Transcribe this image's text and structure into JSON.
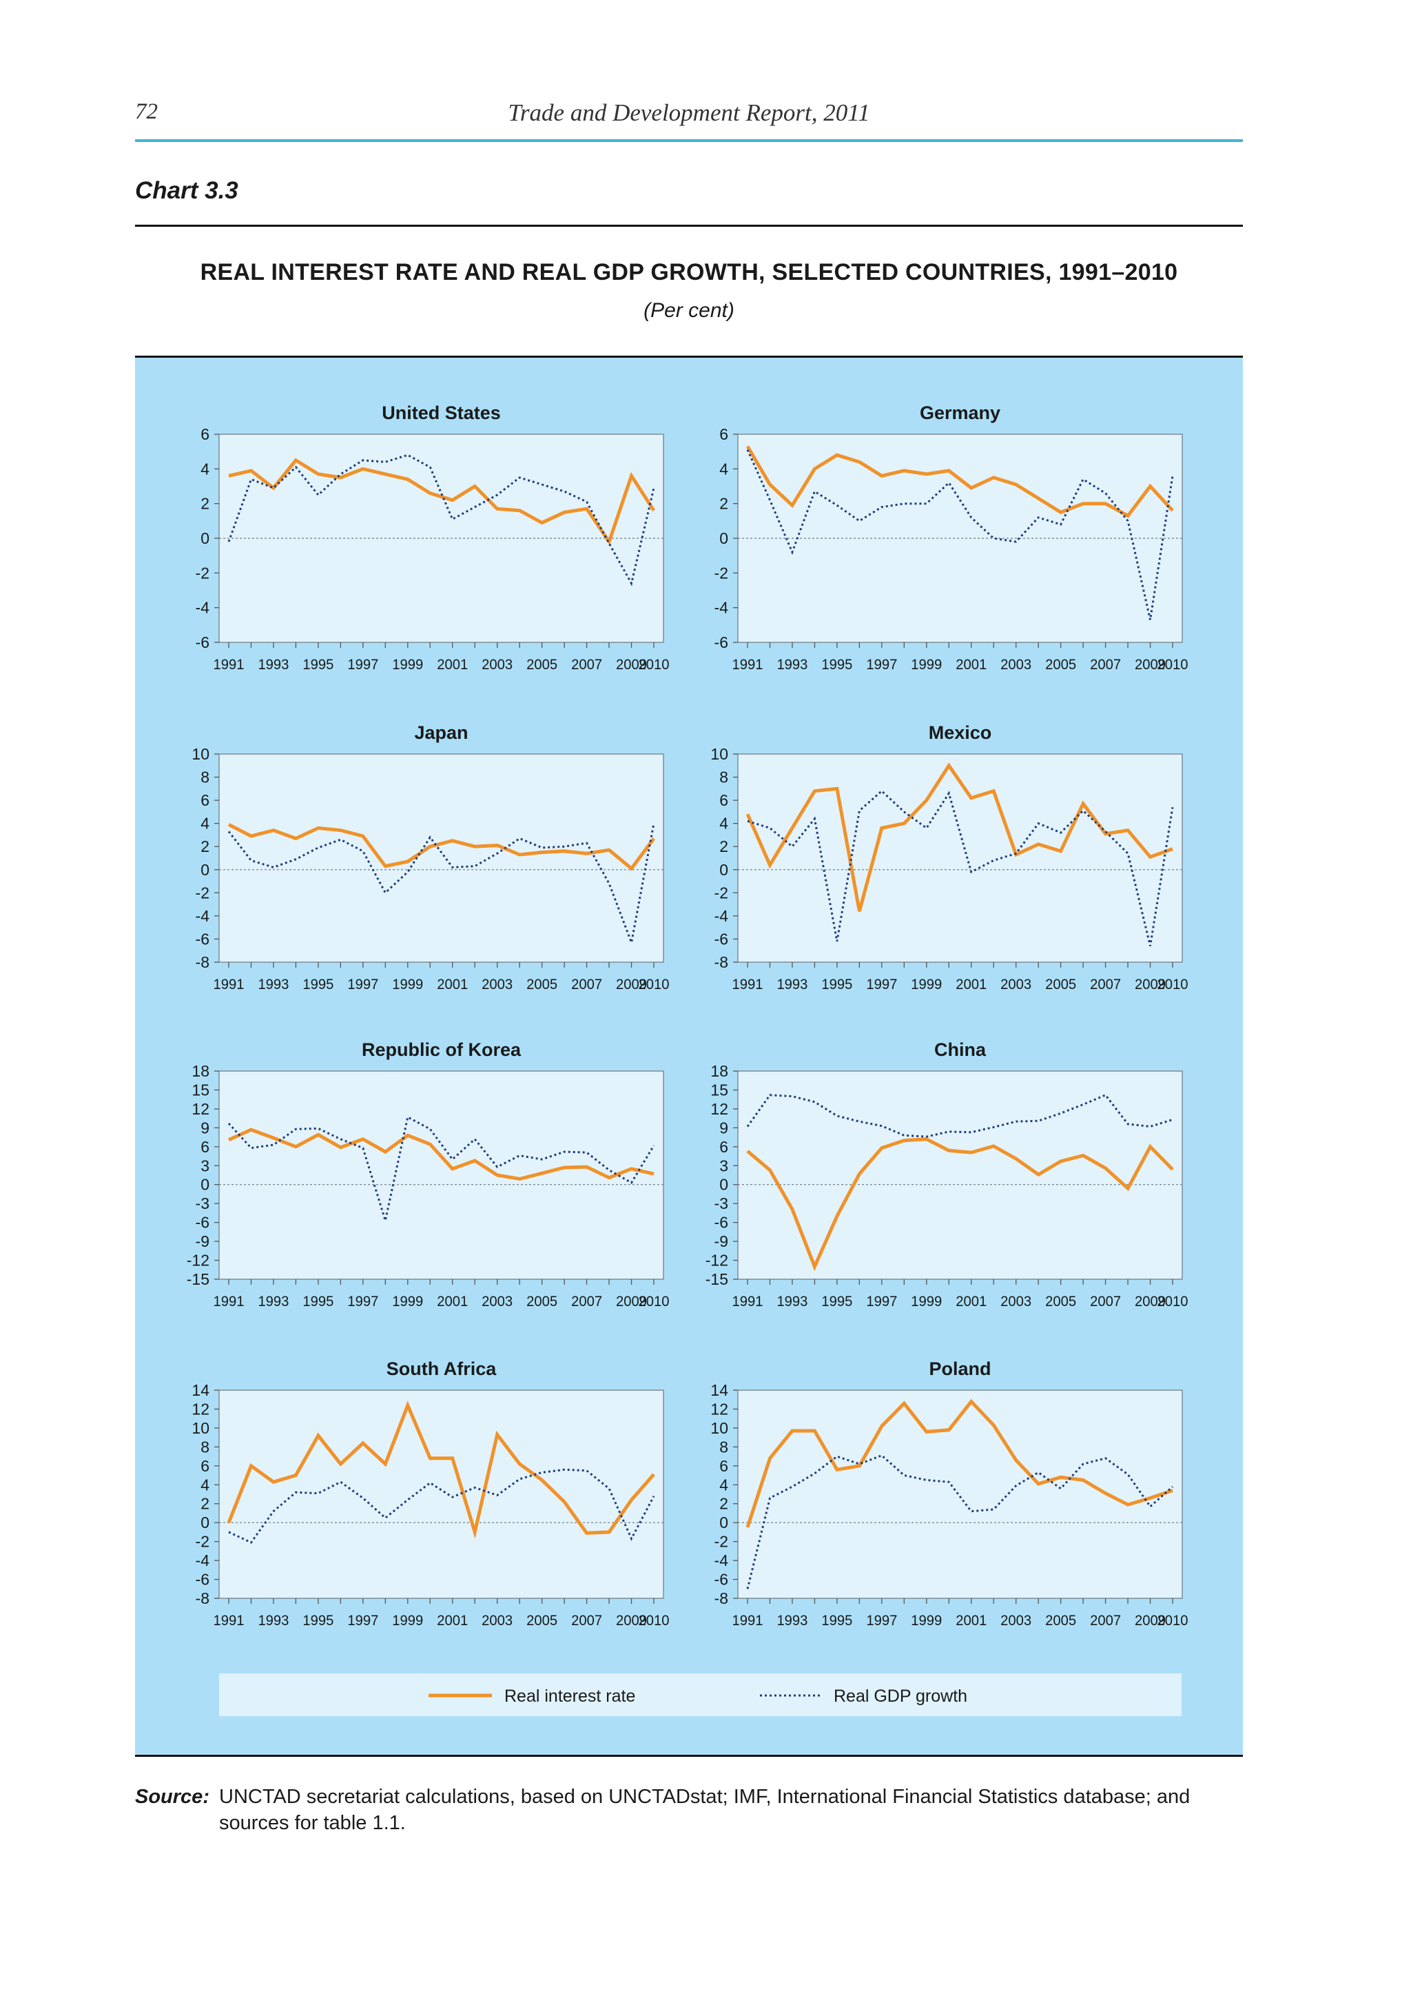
{
  "header": {
    "page_number": "72",
    "running_title": "Trade and Development Report, 2011"
  },
  "chart_label": "Chart 3.3",
  "title": "REAL INTEREST RATE AND REAL GDP GROWTH, SELECTED COUNTRIES, 1991–2010",
  "subtitle": "(Per cent)",
  "legend": {
    "interest": "Real interest rate",
    "gdp": "Real GDP growth"
  },
  "colors": {
    "interest": "#f0922a",
    "gdp": "#1f3d7a",
    "panel": "#acdff7",
    "plot": "#e3f3fc"
  },
  "source": {
    "label": "Source:",
    "text": "UNCTAD secretariat calculations, based on UNCTADstat; IMF, International Financial Statistics database; and sources for table 1.1."
  },
  "chart_data": [
    {
      "type": "line",
      "title": "United States",
      "x": [
        1991,
        1992,
        1993,
        1994,
        1995,
        1996,
        1997,
        1998,
        1999,
        2000,
        2001,
        2002,
        2003,
        2004,
        2005,
        2006,
        2007,
        2008,
        2009,
        2010
      ],
      "x_ticks": [
        "1991",
        "1993",
        "1995",
        "1997",
        "1999",
        "2001",
        "2003",
        "2005",
        "2007",
        "2009",
        "2010"
      ],
      "y_ticks": [
        -6,
        -4,
        -2,
        0,
        2,
        4,
        6
      ],
      "ylim": [
        -6,
        6
      ],
      "series": [
        {
          "name": "Real interest rate",
          "values": [
            3.6,
            3.9,
            2.9,
            4.5,
            3.7,
            3.5,
            4.0,
            3.7,
            3.4,
            2.6,
            2.2,
            3.0,
            1.7,
            1.6,
            0.9,
            1.5,
            1.7,
            -0.2,
            3.6,
            1.6
          ]
        },
        {
          "name": "Real GDP growth",
          "values": [
            -0.2,
            3.4,
            2.9,
            4.1,
            2.5,
            3.7,
            4.5,
            4.4,
            4.8,
            4.1,
            1.1,
            1.8,
            2.5,
            3.5,
            3.1,
            2.7,
            2.1,
            -0.3,
            -2.6,
            2.9
          ]
        }
      ]
    },
    {
      "type": "line",
      "title": "Germany",
      "x": [
        1991,
        1992,
        1993,
        1994,
        1995,
        1996,
        1997,
        1998,
        1999,
        2000,
        2001,
        2002,
        2003,
        2004,
        2005,
        2006,
        2007,
        2008,
        2009,
        2010
      ],
      "x_ticks": [
        "1991",
        "1993",
        "1995",
        "1997",
        "1999",
        "2001",
        "2003",
        "2005",
        "2007",
        "2009",
        "2010"
      ],
      "y_ticks": [
        -6,
        -4,
        -2,
        0,
        2,
        4,
        6
      ],
      "ylim": [
        -6,
        6
      ],
      "series": [
        {
          "name": "Real interest rate",
          "values": [
            5.3,
            3.1,
            1.9,
            4.0,
            4.8,
            4.4,
            3.6,
            3.9,
            3.7,
            3.9,
            2.9,
            3.5,
            3.1,
            2.3,
            1.5,
            2.0,
            2.0,
            1.3,
            3.0,
            1.6
          ]
        },
        {
          "name": "Real GDP growth",
          "values": [
            5.1,
            2.2,
            -0.8,
            2.7,
            1.9,
            1.0,
            1.8,
            2.0,
            2.0,
            3.2,
            1.2,
            0.0,
            -0.2,
            1.2,
            0.8,
            3.4,
            2.6,
            1.0,
            -4.7,
            3.6
          ]
        }
      ]
    },
    {
      "type": "line",
      "title": "Japan",
      "x": [
        1991,
        1992,
        1993,
        1994,
        1995,
        1996,
        1997,
        1998,
        1999,
        2000,
        2001,
        2002,
        2003,
        2004,
        2005,
        2006,
        2007,
        2008,
        2009,
        2010
      ],
      "x_ticks": [
        "1991",
        "1993",
        "1995",
        "1997",
        "1999",
        "2001",
        "2003",
        "2005",
        "2007",
        "2009",
        "2010"
      ],
      "y_ticks": [
        -8,
        -6,
        -4,
        -2,
        0,
        2,
        4,
        6,
        8,
        10
      ],
      "ylim": [
        -8,
        10
      ],
      "series": [
        {
          "name": "Real interest rate",
          "values": [
            3.9,
            2.9,
            3.4,
            2.7,
            3.6,
            3.4,
            2.9,
            0.3,
            0.7,
            2.0,
            2.5,
            2.0,
            2.1,
            1.3,
            1.5,
            1.6,
            1.4,
            1.7,
            0.1,
            2.7
          ]
        },
        {
          "name": "Real GDP growth",
          "values": [
            3.3,
            0.8,
            0.2,
            0.9,
            1.9,
            2.6,
            1.6,
            -2.0,
            -0.2,
            2.8,
            0.2,
            0.3,
            1.4,
            2.7,
            1.9,
            2.0,
            2.3,
            -1.2,
            -6.3,
            4.0
          ]
        }
      ]
    },
    {
      "type": "line",
      "title": "Mexico",
      "x": [
        1991,
        1992,
        1993,
        1994,
        1995,
        1996,
        1997,
        1998,
        1999,
        2000,
        2001,
        2002,
        2003,
        2004,
        2005,
        2006,
        2007,
        2008,
        2009,
        2010
      ],
      "x_ticks": [
        "1991",
        "1993",
        "1995",
        "1997",
        "1999",
        "2001",
        "2003",
        "2005",
        "2007",
        "2009",
        "2010"
      ],
      "y_ticks": [
        -8,
        -6,
        -4,
        -2,
        0,
        2,
        4,
        6,
        8,
        10
      ],
      "ylim": [
        -8,
        10
      ],
      "series": [
        {
          "name": "Real interest rate",
          "values": [
            4.8,
            0.4,
            3.6,
            6.8,
            7.0,
            -3.6,
            3.6,
            4.0,
            6.0,
            9.0,
            6.2,
            6.8,
            1.3,
            2.2,
            1.6,
            5.7,
            3.1,
            3.4,
            1.1,
            1.8
          ]
        },
        {
          "name": "Real GDP growth",
          "values": [
            4.2,
            3.6,
            2.0,
            4.4,
            -6.2,
            5.1,
            6.8,
            5.0,
            3.6,
            6.6,
            -0.2,
            0.8,
            1.4,
            4.0,
            3.2,
            5.1,
            3.3,
            1.4,
            -6.6,
            5.4
          ]
        }
      ]
    },
    {
      "type": "line",
      "title": "Republic of Korea",
      "x": [
        1991,
        1992,
        1993,
        1994,
        1995,
        1996,
        1997,
        1998,
        1999,
        2000,
        2001,
        2002,
        2003,
        2004,
        2005,
        2006,
        2007,
        2008,
        2009,
        2010
      ],
      "x_ticks": [
        "1991",
        "1993",
        "1995",
        "1997",
        "1999",
        "2001",
        "2003",
        "2005",
        "2007",
        "2009",
        "2010"
      ],
      "y_ticks": [
        -15,
        -12,
        -9,
        -6,
        -3,
        0,
        3,
        6,
        9,
        12,
        15,
        18
      ],
      "ylim": [
        -15,
        18
      ],
      "series": [
        {
          "name": "Real interest rate",
          "values": [
            7.1,
            8.7,
            7.4,
            6.0,
            7.9,
            5.9,
            7.2,
            5.2,
            7.8,
            6.4,
            2.5,
            3.8,
            1.5,
            0.9,
            1.8,
            2.7,
            2.8,
            1.1,
            2.5,
            1.7
          ]
        },
        {
          "name": "Real GDP growth",
          "values": [
            9.7,
            5.8,
            6.3,
            8.8,
            8.9,
            7.2,
            5.8,
            -5.7,
            10.7,
            8.8,
            4.0,
            7.2,
            2.8,
            4.6,
            4.0,
            5.2,
            5.1,
            2.3,
            0.3,
            6.2
          ]
        }
      ]
    },
    {
      "type": "line",
      "title": "China",
      "x": [
        1991,
        1992,
        1993,
        1994,
        1995,
        1996,
        1997,
        1998,
        1999,
        2000,
        2001,
        2002,
        2003,
        2004,
        2005,
        2006,
        2007,
        2008,
        2009,
        2010
      ],
      "x_ticks": [
        "1991",
        "1993",
        "1995",
        "1997",
        "1999",
        "2001",
        "2003",
        "2005",
        "2007",
        "2009",
        "2010"
      ],
      "y_ticks": [
        -15,
        -12,
        -9,
        -6,
        -3,
        0,
        3,
        6,
        9,
        12,
        15,
        18
      ],
      "ylim": [
        -15,
        18
      ],
      "series": [
        {
          "name": "Real interest rate",
          "values": [
            5.3,
            2.3,
            -3.9,
            -13.0,
            -5.0,
            1.7,
            5.8,
            7.0,
            7.2,
            5.4,
            5.1,
            6.1,
            4.1,
            1.6,
            3.7,
            4.6,
            2.6,
            -0.6,
            6.0,
            2.4
          ]
        },
        {
          "name": "Real GDP growth",
          "values": [
            9.2,
            14.2,
            14.0,
            13.1,
            10.9,
            10.0,
            9.3,
            7.8,
            7.6,
            8.4,
            8.3,
            9.1,
            10.0,
            10.1,
            11.3,
            12.7,
            14.2,
            9.6,
            9.2,
            10.3
          ]
        }
      ]
    },
    {
      "type": "line",
      "title": "South Africa",
      "x": [
        1991,
        1992,
        1993,
        1994,
        1995,
        1996,
        1997,
        1998,
        1999,
        2000,
        2001,
        2002,
        2003,
        2004,
        2005,
        2006,
        2007,
        2008,
        2009,
        2010
      ],
      "x_ticks": [
        "1991",
        "1993",
        "1995",
        "1997",
        "1999",
        "2001",
        "2003",
        "2005",
        "2007",
        "2009",
        "2010"
      ],
      "y_ticks": [
        -8,
        -6,
        -4,
        -2,
        0,
        2,
        4,
        6,
        8,
        10,
        12,
        14
      ],
      "ylim": [
        -8,
        14
      ],
      "series": [
        {
          "name": "Real interest rate",
          "values": [
            0.0,
            6.0,
            4.3,
            5.0,
            9.2,
            6.2,
            8.4,
            6.2,
            12.4,
            6.8,
            6.8,
            -1.0,
            9.3,
            6.2,
            4.5,
            2.2,
            -1.1,
            -1.0,
            2.4,
            5.1
          ]
        },
        {
          "name": "Real GDP growth",
          "values": [
            -1.0,
            -2.1,
            1.2,
            3.2,
            3.1,
            4.3,
            2.6,
            0.5,
            2.4,
            4.2,
            2.7,
            3.7,
            2.9,
            4.6,
            5.3,
            5.6,
            5.5,
            3.6,
            -1.7,
            2.8
          ]
        }
      ]
    },
    {
      "type": "line",
      "title": "Poland",
      "x": [
        1991,
        1992,
        1993,
        1994,
        1995,
        1996,
        1997,
        1998,
        1999,
        2000,
        2001,
        2002,
        2003,
        2004,
        2005,
        2006,
        2007,
        2008,
        2009,
        2010
      ],
      "x_ticks": [
        "1991",
        "1993",
        "1995",
        "1997",
        "1999",
        "2001",
        "2003",
        "2005",
        "2007",
        "2009",
        "2010"
      ],
      "y_ticks": [
        -8,
        -6,
        -4,
        -2,
        0,
        2,
        4,
        6,
        8,
        10,
        12,
        14
      ],
      "ylim": [
        -8,
        14
      ],
      "series": [
        {
          "name": "Real interest rate",
          "values": [
            -0.5,
            6.8,
            9.7,
            9.7,
            5.6,
            6.0,
            10.2,
            12.6,
            9.6,
            9.8,
            12.8,
            10.3,
            6.6,
            4.1,
            4.8,
            4.5,
            3.1,
            1.9,
            2.6,
            3.4
          ]
        },
        {
          "name": "Real GDP growth",
          "values": [
            -7.0,
            2.6,
            3.8,
            5.2,
            7.0,
            6.2,
            7.1,
            5.0,
            4.5,
            4.3,
            1.2,
            1.4,
            3.9,
            5.3,
            3.6,
            6.2,
            6.8,
            5.1,
            1.7,
            3.8
          ]
        }
      ]
    }
  ]
}
